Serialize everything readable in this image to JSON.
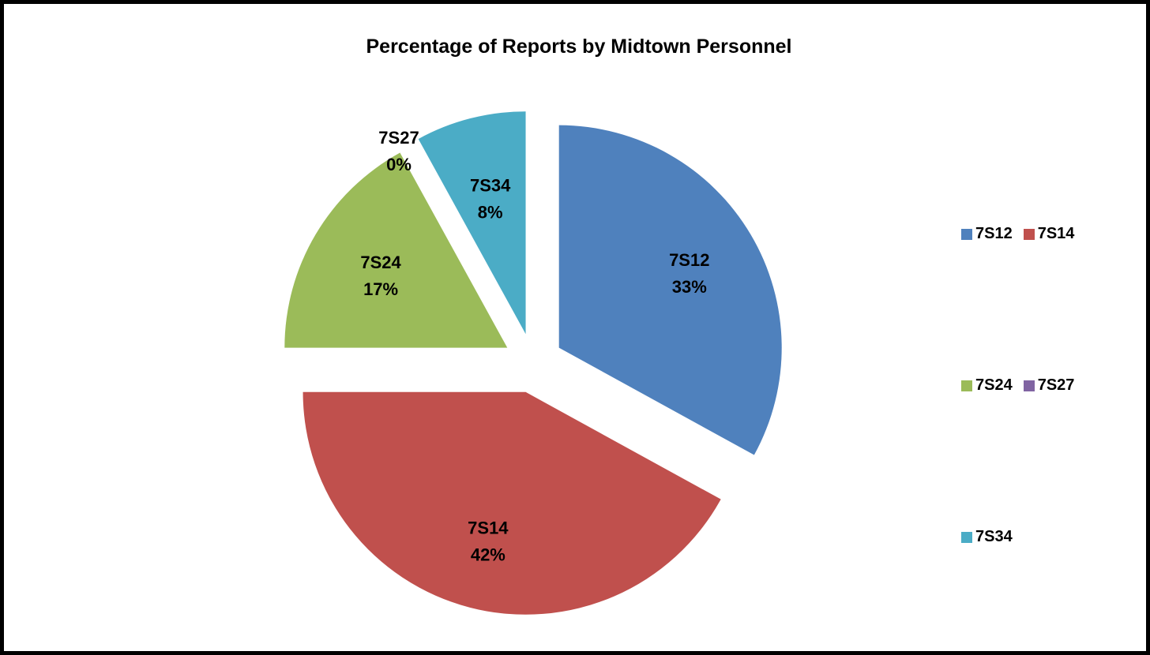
{
  "chart_data": {
    "type": "pie",
    "title": "Percentage of Reports by Midtown Personnel",
    "categories": [
      "7S12",
      "7S14",
      "7S24",
      "7S27",
      "7S34"
    ],
    "values": [
      33,
      42,
      17,
      0,
      8
    ],
    "labels": [
      "33%",
      "42%",
      "17%",
      "0%",
      "8%"
    ],
    "colors": [
      "#4F81BD",
      "#C0504D",
      "#9BBB59",
      "#8064A2",
      "#4BACC6"
    ],
    "exploded": true,
    "legend": "right",
    "legend_rows": [
      [
        "7S12",
        "7S14"
      ],
      [
        "7S24",
        "7S27"
      ],
      [
        "7S34"
      ]
    ]
  }
}
